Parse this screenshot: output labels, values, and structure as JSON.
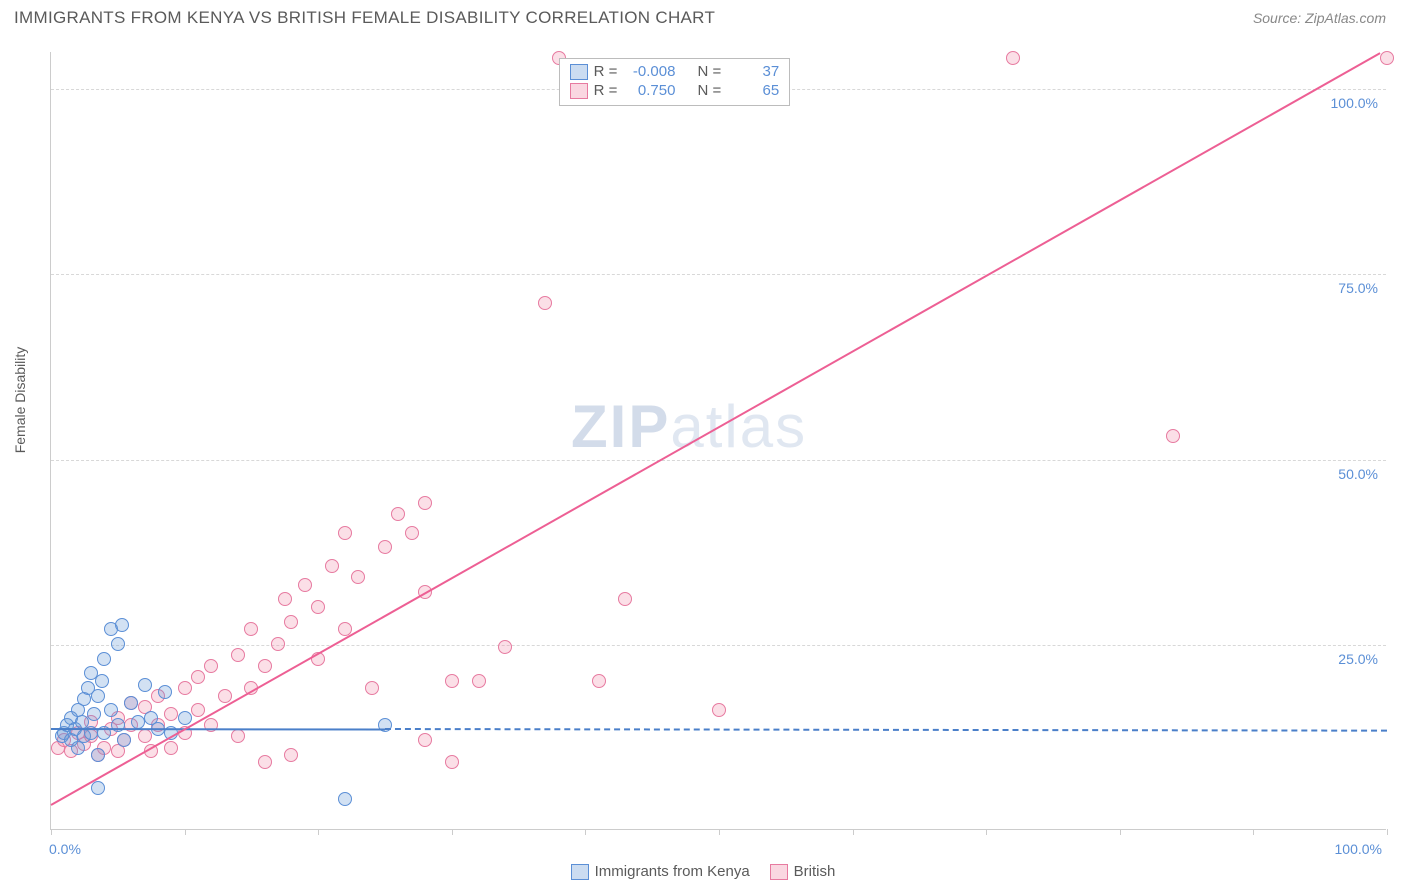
{
  "header": {
    "title": "IMMIGRANTS FROM KENYA VS BRITISH FEMALE DISABILITY CORRELATION CHART",
    "source": "Source: ZipAtlas.com"
  },
  "chart": {
    "type": "scatter",
    "ylabel": "Female Disability",
    "xlim": [
      0,
      100
    ],
    "ylim": [
      0,
      105
    ],
    "y_ticks": [
      25,
      50,
      75,
      100
    ],
    "y_tick_labels": [
      "25.0%",
      "50.0%",
      "75.0%",
      "100.0%"
    ],
    "x_tick_positions": [
      0,
      10,
      20,
      30,
      40,
      50,
      60,
      70,
      80,
      90,
      100
    ],
    "x_axis_labels": {
      "left": "0.0%",
      "right": "100.0%"
    },
    "background_color": "#ffffff",
    "grid_color": "#d8d8d8",
    "axis_color": "#cccccc",
    "marker_radius": 7,
    "series": {
      "blue": {
        "label": "Immigrants from Kenya",
        "fill_color": "rgba(107,156,214,0.30)",
        "stroke_color": "#5b8fd6",
        "R": "-0.008",
        "N": "37",
        "trend": {
          "slope": -0.003,
          "intercept": 13.8,
          "solid_xmax": 25,
          "dash_xmax": 100
        },
        "points": [
          [
            0.8,
            12.5
          ],
          [
            1.0,
            13.0
          ],
          [
            1.2,
            14.0
          ],
          [
            1.5,
            12.0
          ],
          [
            1.5,
            15.0
          ],
          [
            1.8,
            13.5
          ],
          [
            2.0,
            11.0
          ],
          [
            2.0,
            16.0
          ],
          [
            2.3,
            14.5
          ],
          [
            2.5,
            12.5
          ],
          [
            2.5,
            17.5
          ],
          [
            2.8,
            19.0
          ],
          [
            3.0,
            13.0
          ],
          [
            3.0,
            21.0
          ],
          [
            3.2,
            15.5
          ],
          [
            3.5,
            10.0
          ],
          [
            3.5,
            18.0
          ],
          [
            3.8,
            20.0
          ],
          [
            4.0,
            13.0
          ],
          [
            4.0,
            23.0
          ],
          [
            4.5,
            16.0
          ],
          [
            4.5,
            27.0
          ],
          [
            5.0,
            14.0
          ],
          [
            5.0,
            25.0
          ],
          [
            5.3,
            27.5
          ],
          [
            5.5,
            12.0
          ],
          [
            6.0,
            17.0
          ],
          [
            6.5,
            14.5
          ],
          [
            7.0,
            19.5
          ],
          [
            7.5,
            15.0
          ],
          [
            8.0,
            13.5
          ],
          [
            8.5,
            18.5
          ],
          [
            3.5,
            5.5
          ],
          [
            9.0,
            13.0
          ],
          [
            10.0,
            15.0
          ],
          [
            22.0,
            4.0
          ],
          [
            25.0,
            14.0
          ]
        ]
      },
      "pink": {
        "label": "British",
        "fill_color": "rgba(240,140,170,0.28)",
        "stroke_color": "#e77aa0",
        "R": "0.750",
        "N": "65",
        "trend": {
          "slope": 1.02,
          "intercept": 3.5,
          "solid_xmax": 100
        },
        "points": [
          [
            0.5,
            11.0
          ],
          [
            1.0,
            12.0
          ],
          [
            1.5,
            10.5
          ],
          [
            2.0,
            13.0
          ],
          [
            2.5,
            11.5
          ],
          [
            3.0,
            12.5
          ],
          [
            3.0,
            14.5
          ],
          [
            3.5,
            10.0
          ],
          [
            4.0,
            11.0
          ],
          [
            4.5,
            13.5
          ],
          [
            5.0,
            10.5
          ],
          [
            5.0,
            15.0
          ],
          [
            5.5,
            12.0
          ],
          [
            6.0,
            14.0
          ],
          [
            6.0,
            17.0
          ],
          [
            7.0,
            12.5
          ],
          [
            7.0,
            16.5
          ],
          [
            7.5,
            10.5
          ],
          [
            8.0,
            14.0
          ],
          [
            8.0,
            18.0
          ],
          [
            9.0,
            11.0
          ],
          [
            9.0,
            15.5
          ],
          [
            10.0,
            13.0
          ],
          [
            10.0,
            19.0
          ],
          [
            11.0,
            16.0
          ],
          [
            11.0,
            20.5
          ],
          [
            12.0,
            14.0
          ],
          [
            12.0,
            22.0
          ],
          [
            13.0,
            18.0
          ],
          [
            14.0,
            12.5
          ],
          [
            14.0,
            23.5
          ],
          [
            15.0,
            19.0
          ],
          [
            15.0,
            27.0
          ],
          [
            16.0,
            9.0
          ],
          [
            16.0,
            22.0
          ],
          [
            17.0,
            25.0
          ],
          [
            17.5,
            31.0
          ],
          [
            18.0,
            10.0
          ],
          [
            18.0,
            28.0
          ],
          [
            19.0,
            33.0
          ],
          [
            20.0,
            23.0
          ],
          [
            20.0,
            30.0
          ],
          [
            21.0,
            35.5
          ],
          [
            22.0,
            27.0
          ],
          [
            22.0,
            40.0
          ],
          [
            23.0,
            34.0
          ],
          [
            24.0,
            19.0
          ],
          [
            25.0,
            38.0
          ],
          [
            26.0,
            42.5
          ],
          [
            27.0,
            40.0
          ],
          [
            28.0,
            12.0
          ],
          [
            28.0,
            32.0
          ],
          [
            28.0,
            44.0
          ],
          [
            30.0,
            20.0
          ],
          [
            30.0,
            9.0
          ],
          [
            32.0,
            20.0
          ],
          [
            34.0,
            24.5
          ],
          [
            37.0,
            71.0
          ],
          [
            38.0,
            104.0
          ],
          [
            41.0,
            20.0
          ],
          [
            43.0,
            31.0
          ],
          [
            50.0,
            16.0
          ],
          [
            72.0,
            104.0
          ],
          [
            84.0,
            53.0
          ],
          [
            100.0,
            104.0
          ]
        ]
      }
    }
  },
  "legend_top": {
    "rows": [
      {
        "swatch": "blue",
        "r_label": "R =",
        "r_value": "-0.008",
        "n_label": "N =",
        "n_value": "37"
      },
      {
        "swatch": "pink",
        "r_label": "R =",
        "r_value": "0.750",
        "n_label": "N =",
        "n_value": "65"
      }
    ]
  },
  "legend_bottom": {
    "items": [
      {
        "swatch": "blue",
        "label": "Immigrants from Kenya"
      },
      {
        "swatch": "pink",
        "label": "British"
      }
    ]
  },
  "watermark": {
    "z": "ZIP",
    "rest": "atlas"
  }
}
